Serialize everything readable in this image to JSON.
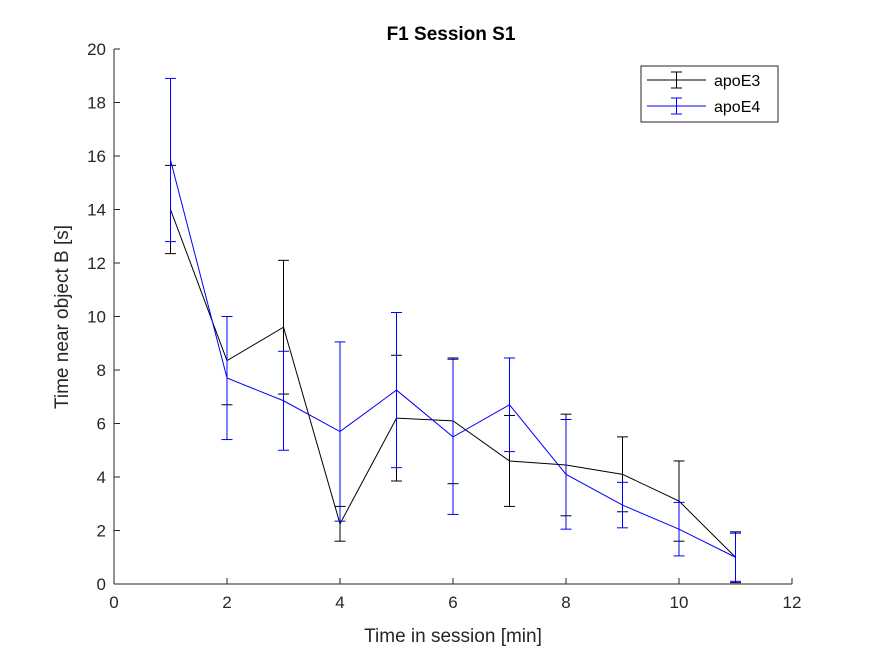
{
  "chart_data": {
    "type": "line",
    "title": "F1 Session S1",
    "xlabel": "Time in session [min]",
    "ylabel": "Time near object B [s]",
    "xlim": [
      0,
      12
    ],
    "ylim": [
      0,
      20
    ],
    "xticks": [
      0,
      2,
      4,
      6,
      8,
      10,
      12
    ],
    "yticks": [
      0,
      2,
      4,
      6,
      8,
      10,
      12,
      14,
      16,
      18,
      20
    ],
    "grid": false,
    "legend_position": "top-right",
    "series": [
      {
        "name": "apoE3",
        "color": "#000000",
        "x": [
          1,
          2,
          3,
          4,
          5,
          6,
          7,
          8,
          9,
          10,
          11
        ],
        "y": [
          14.0,
          8.35,
          9.6,
          2.25,
          6.2,
          6.1,
          4.6,
          4.45,
          4.1,
          3.1,
          1.0
        ],
        "err": [
          1.65,
          1.65,
          2.5,
          0.65,
          2.35,
          2.35,
          1.7,
          1.9,
          1.4,
          1.5,
          0.95
        ]
      },
      {
        "name": "apoE4",
        "color": "#0000ff",
        "x": [
          1,
          2,
          3,
          4,
          5,
          6,
          7,
          8,
          9,
          10,
          11
        ],
        "y": [
          15.85,
          7.7,
          6.85,
          5.7,
          7.25,
          5.5,
          6.7,
          4.1,
          2.95,
          2.05,
          1.0
        ],
        "err": [
          3.05,
          2.3,
          1.85,
          3.35,
          2.9,
          2.9,
          1.75,
          2.05,
          0.85,
          1.0,
          0.9
        ]
      }
    ]
  }
}
